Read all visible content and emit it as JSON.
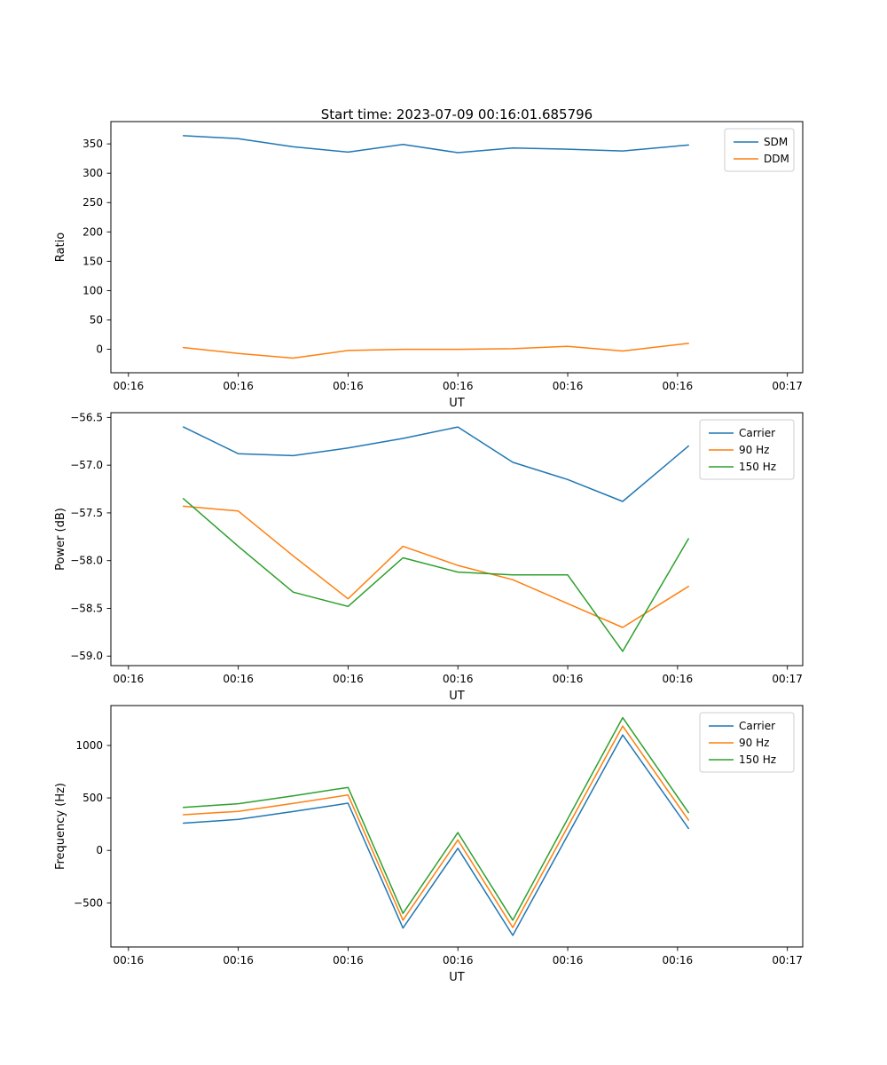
{
  "figure": {
    "title": "Start time: 2023-07-09 00:16:01.685796"
  },
  "chart_data": [
    {
      "id": "ratio",
      "type": "line",
      "title": "Start time: 2023-07-09 00:16:01.685796",
      "xlabel": "UT",
      "ylabel": "Ratio",
      "legend_position": "upper right",
      "grid": false,
      "x_seconds": [
        5,
        10,
        15,
        20,
        25,
        30,
        35,
        40,
        45,
        51
      ],
      "xlim_seconds": [
        -1.6,
        61.4
      ],
      "xtick_seconds": [
        0,
        10,
        20,
        30,
        40,
        50,
        60
      ],
      "xtick_labels": [
        "00:16",
        "00:16",
        "00:16",
        "00:16",
        "00:16",
        "00:16",
        "00:17"
      ],
      "ylim": [
        -40,
        388
      ],
      "yticks": [
        0,
        50,
        100,
        150,
        200,
        250,
        300,
        350
      ],
      "ytick_labels": [
        "0",
        "50",
        "100",
        "150",
        "200",
        "250",
        "300",
        "350"
      ],
      "series": [
        {
          "name": "SDM",
          "color": "#1f77b4",
          "values": [
            364,
            359,
            345,
            336,
            349,
            335,
            343,
            341,
            338,
            348
          ]
        },
        {
          "name": "DDM",
          "color": "#ff7f0e",
          "values": [
            3,
            -7,
            -15,
            -2,
            0,
            0,
            1,
            5,
            -3,
            10
          ]
        }
      ]
    },
    {
      "id": "power",
      "type": "line",
      "title": "",
      "xlabel": "UT",
      "ylabel": "Power (dB)",
      "legend_position": "upper right",
      "grid": false,
      "x_seconds": [
        5,
        10,
        15,
        20,
        25,
        30,
        35,
        40,
        45,
        51
      ],
      "xlim_seconds": [
        -1.6,
        61.4
      ],
      "xtick_seconds": [
        0,
        10,
        20,
        30,
        40,
        50,
        60
      ],
      "xtick_labels": [
        "00:16",
        "00:16",
        "00:16",
        "00:16",
        "00:16",
        "00:16",
        "00:17"
      ],
      "ylim": [
        -59.1,
        -56.45
      ],
      "yticks": [
        -56.5,
        -57.0,
        -57.5,
        -58.0,
        -58.5,
        -59.0
      ],
      "ytick_labels": [
        "−56.5",
        "−57.0",
        "−57.5",
        "−58.0",
        "−58.5",
        "−59.0"
      ],
      "series": [
        {
          "name": "Carrier",
          "color": "#1f77b4",
          "values": [
            -56.6,
            -56.88,
            -56.9,
            -56.82,
            -56.72,
            -56.6,
            -56.97,
            -57.15,
            -57.38,
            -56.8
          ]
        },
        {
          "name": "90 Hz",
          "color": "#ff7f0e",
          "values": [
            -57.43,
            -57.48,
            -57.95,
            -58.4,
            -57.85,
            -58.05,
            -58.2,
            -58.45,
            -58.7,
            -58.27
          ]
        },
        {
          "name": "150 Hz",
          "color": "#2ca02c",
          "values": [
            -57.35,
            -57.85,
            -58.33,
            -58.48,
            -57.97,
            -58.12,
            -58.15,
            -58.15,
            -58.95,
            -57.77
          ]
        }
      ]
    },
    {
      "id": "frequency",
      "type": "line",
      "title": "",
      "xlabel": "UT",
      "ylabel": "Frequency (Hz)",
      "legend_position": "upper right",
      "grid": false,
      "x_seconds": [
        5,
        10,
        15,
        20,
        25,
        30,
        35,
        40,
        45,
        51
      ],
      "xlim_seconds": [
        -1.6,
        61.4
      ],
      "xtick_seconds": [
        0,
        10,
        20,
        30,
        40,
        50,
        60
      ],
      "xtick_labels": [
        "00:16",
        "00:16",
        "00:16",
        "00:16",
        "00:16",
        "00:16",
        "00:17"
      ],
      "ylim": [
        -920,
        1380
      ],
      "yticks": [
        -500,
        0,
        500,
        1000
      ],
      "ytick_labels": [
        "−500",
        "0",
        "500",
        "1000"
      ],
      "series": [
        {
          "name": "Carrier",
          "color": "#1f77b4",
          "values": [
            260,
            295,
            370,
            450,
            -740,
            20,
            -810,
            145,
            1100,
            210
          ]
        },
        {
          "name": "90 Hz",
          "color": "#ff7f0e",
          "values": [
            340,
            372,
            448,
            528,
            -665,
            100,
            -735,
            225,
            1185,
            288
          ]
        },
        {
          "name": "150 Hz",
          "color": "#2ca02c",
          "values": [
            410,
            445,
            520,
            600,
            -600,
            170,
            -665,
            300,
            1265,
            360
          ]
        }
      ]
    }
  ]
}
